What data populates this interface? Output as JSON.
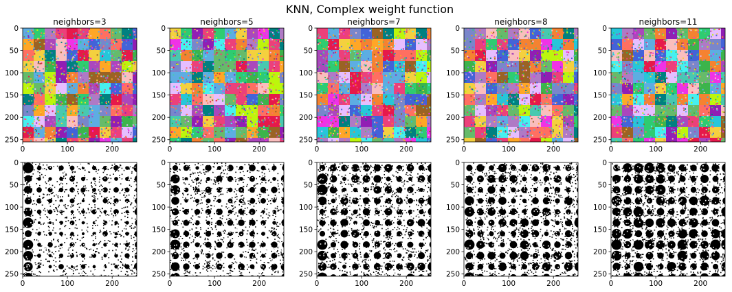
{
  "figure": {
    "suptitle": "KNN, Complex weight function"
  },
  "chart_data": [
    {
      "type": "heatmap",
      "title": "neighbors=3",
      "variant": "color",
      "neighbors": 3,
      "xticks": [
        "0",
        "100",
        "200"
      ],
      "yticks": [
        "0",
        "50",
        "100",
        "150",
        "200",
        "250"
      ],
      "xlim": [
        0,
        255
      ],
      "ylim": [
        255,
        0
      ]
    },
    {
      "type": "heatmap",
      "title": "neighbors=5",
      "variant": "color",
      "neighbors": 5,
      "xticks": [
        "0",
        "100",
        "200"
      ],
      "yticks": [
        "0",
        "50",
        "100",
        "150",
        "200",
        "250"
      ],
      "xlim": [
        0,
        255
      ],
      "ylim": [
        255,
        0
      ]
    },
    {
      "type": "heatmap",
      "title": "neighbors=7",
      "variant": "color",
      "neighbors": 7,
      "xticks": [
        "0",
        "100",
        "200"
      ],
      "yticks": [
        "0",
        "50",
        "100",
        "150",
        "200",
        "250"
      ],
      "xlim": [
        0,
        255
      ],
      "ylim": [
        255,
        0
      ]
    },
    {
      "type": "heatmap",
      "title": "neighbors=8",
      "variant": "color",
      "neighbors": 8,
      "xticks": [
        "0",
        "100",
        "200"
      ],
      "yticks": [
        "0",
        "50",
        "100",
        "150",
        "200",
        "250"
      ],
      "xlim": [
        0,
        255
      ],
      "ylim": [
        255,
        0
      ]
    },
    {
      "type": "heatmap",
      "title": "neighbors=11",
      "variant": "color",
      "neighbors": 11,
      "xticks": [
        "0",
        "100",
        "200"
      ],
      "yticks": [
        "0",
        "50",
        "100",
        "150",
        "200",
        "250"
      ],
      "xlim": [
        0,
        255
      ],
      "ylim": [
        255,
        0
      ]
    },
    {
      "type": "heatmap",
      "title": "",
      "variant": "binary",
      "neighbors": 3,
      "xticks": [
        "0",
        "100",
        "200"
      ],
      "yticks": [
        "0",
        "50",
        "100",
        "150",
        "200",
        "250"
      ],
      "xlim": [
        0,
        255
      ],
      "ylim": [
        255,
        0
      ]
    },
    {
      "type": "heatmap",
      "title": "",
      "variant": "binary",
      "neighbors": 5,
      "xticks": [
        "0",
        "100",
        "200"
      ],
      "yticks": [
        "0",
        "50",
        "100",
        "150",
        "200",
        "250"
      ],
      "xlim": [
        0,
        255
      ],
      "ylim": [
        255,
        0
      ]
    },
    {
      "type": "heatmap",
      "title": "",
      "variant": "binary",
      "neighbors": 7,
      "xticks": [
        "0",
        "100",
        "200"
      ],
      "yticks": [
        "0",
        "50",
        "100",
        "150",
        "200",
        "250"
      ],
      "xlim": [
        0,
        255
      ],
      "ylim": [
        255,
        0
      ]
    },
    {
      "type": "heatmap",
      "title": "",
      "variant": "binary",
      "neighbors": 8,
      "xticks": [
        "0",
        "100",
        "200"
      ],
      "yticks": [
        "0",
        "50",
        "100",
        "150",
        "200",
        "250"
      ],
      "xlim": [
        0,
        255
      ],
      "ylim": [
        255,
        0
      ]
    },
    {
      "type": "heatmap",
      "title": "",
      "variant": "binary",
      "neighbors": 11,
      "xticks": [
        "0",
        "100",
        "200"
      ],
      "yticks": [
        "0",
        "50",
        "100",
        "150",
        "200",
        "250"
      ],
      "xlim": [
        0,
        255
      ],
      "ylim": [
        255,
        0
      ]
    }
  ],
  "palette": [
    "#e6194b",
    "#3cb44b",
    "#4363d8",
    "#f58231",
    "#911eb4",
    "#46f0f0",
    "#f032e6",
    "#bcf60c",
    "#fabebe",
    "#008080",
    "#e6beff",
    "#9a6324",
    "#ff6f61",
    "#2ecc71",
    "#5dade2",
    "#af7ac5",
    "#f4d03f",
    "#48c9b0",
    "#ec407a",
    "#7986cb",
    "#66bb6a",
    "#26c6da",
    "#ab47bc",
    "#ffa726"
  ]
}
